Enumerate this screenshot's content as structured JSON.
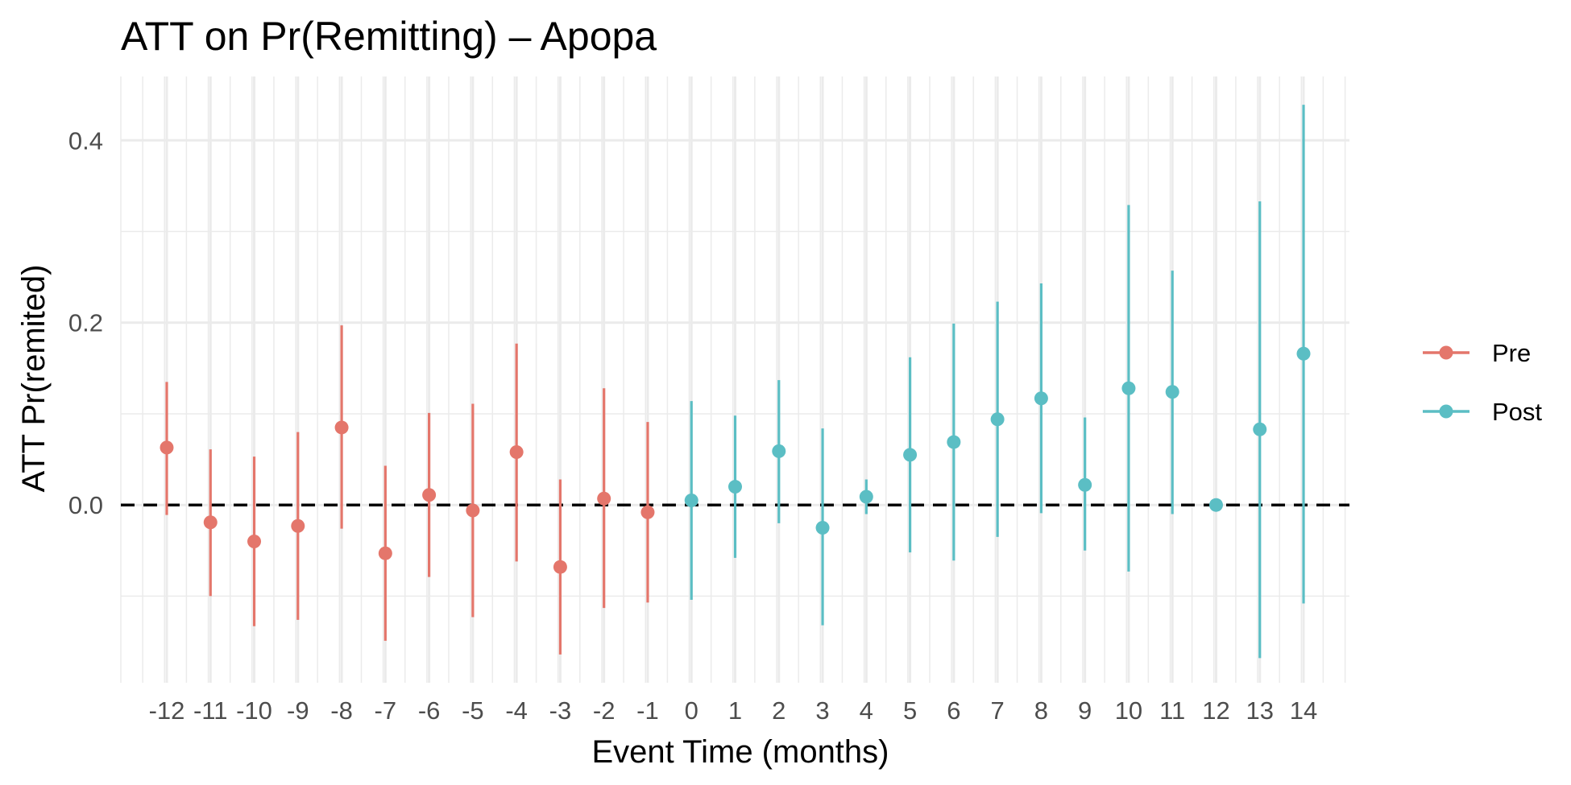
{
  "chart_data": {
    "type": "scatter",
    "title": "ATT on Pr(Remitting) – Apopa",
    "xlabel": "Event Time (months)",
    "ylabel": "ATT Pr(remited)",
    "x_ticks": [
      "-12",
      "-11",
      "-10",
      "-9",
      "-8",
      "-7",
      "-6",
      "-5",
      "-4",
      "-3",
      "-2",
      "-1",
      "0",
      "1",
      "2",
      "3",
      "4",
      "5",
      "6",
      "7",
      "8",
      "9",
      "10",
      "11",
      "12",
      "13",
      "14"
    ],
    "y_ticks": [
      "0.0",
      "0.2",
      "0.4"
    ],
    "ylim": [
      -0.195,
      0.47
    ],
    "xlim": [
      -13.05,
      15.05
    ],
    "grid": true,
    "reference_line": {
      "y": 0,
      "style": "dashed",
      "color": "#000000"
    },
    "legend_position": "right",
    "series": [
      {
        "name": "Pre",
        "color": "#E4766B",
        "points": [
          {
            "x": -12,
            "y": 0.063,
            "lo": -0.011,
            "hi": 0.135
          },
          {
            "x": -11,
            "y": -0.019,
            "lo": -0.1,
            "hi": 0.061
          },
          {
            "x": -10,
            "y": -0.04,
            "lo": -0.133,
            "hi": 0.053
          },
          {
            "x": -9,
            "y": -0.023,
            "lo": -0.126,
            "hi": 0.08
          },
          {
            "x": -8,
            "y": 0.085,
            "lo": -0.026,
            "hi": 0.197
          },
          {
            "x": -7,
            "y": -0.053,
            "lo": -0.149,
            "hi": 0.043
          },
          {
            "x": -6,
            "y": 0.011,
            "lo": -0.079,
            "hi": 0.101
          },
          {
            "x": -5,
            "y": -0.006,
            "lo": -0.123,
            "hi": 0.111
          },
          {
            "x": -4,
            "y": 0.058,
            "lo": -0.062,
            "hi": 0.177
          },
          {
            "x": -3,
            "y": -0.068,
            "lo": -0.164,
            "hi": 0.028
          },
          {
            "x": -2,
            "y": 0.007,
            "lo": -0.113,
            "hi": 0.128
          },
          {
            "x": -1,
            "y": -0.008,
            "lo": -0.107,
            "hi": 0.091
          }
        ]
      },
      {
        "name": "Post",
        "color": "#5BBEC4",
        "points": [
          {
            "x": 0,
            "y": 0.005,
            "lo": -0.104,
            "hi": 0.114
          },
          {
            "x": 1,
            "y": 0.02,
            "lo": -0.058,
            "hi": 0.098
          },
          {
            "x": 2,
            "y": 0.059,
            "lo": -0.02,
            "hi": 0.137
          },
          {
            "x": 3,
            "y": -0.025,
            "lo": -0.132,
            "hi": 0.084
          },
          {
            "x": 4,
            "y": 0.009,
            "lo": -0.01,
            "hi": 0.028
          },
          {
            "x": 5,
            "y": 0.055,
            "lo": -0.052,
            "hi": 0.162
          },
          {
            "x": 6,
            "y": 0.069,
            "lo": -0.061,
            "hi": 0.199
          },
          {
            "x": 7,
            "y": 0.094,
            "lo": -0.035,
            "hi": 0.223
          },
          {
            "x": 8,
            "y": 0.117,
            "lo": -0.009,
            "hi": 0.243
          },
          {
            "x": 9,
            "y": 0.022,
            "lo": -0.05,
            "hi": 0.096
          },
          {
            "x": 10,
            "y": 0.128,
            "lo": -0.073,
            "hi": 0.329
          },
          {
            "x": 11,
            "y": 0.124,
            "lo": -0.01,
            "hi": 0.257
          },
          {
            "x": 12,
            "y": 0.0,
            "lo": 0.0,
            "hi": 0.0
          },
          {
            "x": 13,
            "y": 0.083,
            "lo": -0.168,
            "hi": 0.333
          },
          {
            "x": 14,
            "y": 0.166,
            "lo": -0.108,
            "hi": 0.439
          }
        ]
      }
    ]
  }
}
